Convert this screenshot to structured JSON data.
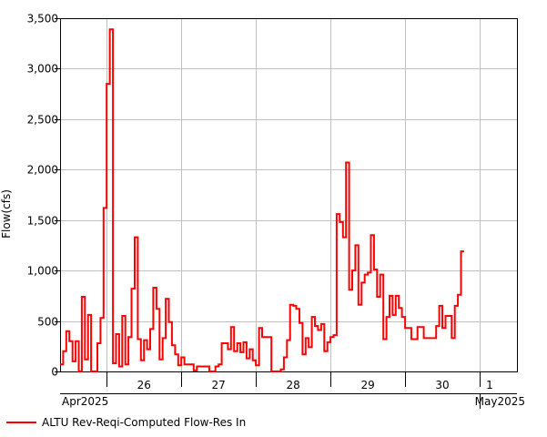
{
  "chart_data": {
    "type": "line",
    "ylabel": "Flow(cfs)",
    "xlabel": "",
    "ylim": [
      0,
      3500
    ],
    "y_ticks": [
      "0",
      "500",
      "1,000",
      "1,500",
      "2,000",
      "2,500",
      "3,000",
      "3,500"
    ],
    "y_tick_values": [
      0,
      500,
      1000,
      1500,
      2000,
      2500,
      3000,
      3500
    ],
    "x_range_days": [
      "2025-04-25 09:00",
      "2025-05-01 12:00"
    ],
    "day_ticks": [
      {
        "label": "26",
        "date": "2025-04-26"
      },
      {
        "label": "27",
        "date": "2025-04-27"
      },
      {
        "label": "28",
        "date": "2025-04-28"
      },
      {
        "label": "29",
        "date": "2025-04-29"
      },
      {
        "label": "30",
        "date": "2025-04-30"
      },
      {
        "label": "1",
        "date": "2025-05-01"
      }
    ],
    "month_labels": [
      "Apr2025",
      "May2025"
    ],
    "grid": true,
    "legend_position": "bottom-left",
    "series": [
      {
        "name": "ALTU Rev-Reqi-Computed Flow-Res In",
        "color": "#ff0000",
        "step": true,
        "points": [
          [
            "2025-04-25 09:00",
            70
          ],
          [
            "2025-04-25 10:00",
            200
          ],
          [
            "2025-04-25 11:00",
            400
          ],
          [
            "2025-04-25 12:00",
            300
          ],
          [
            "2025-04-25 13:00",
            100
          ],
          [
            "2025-04-25 14:00",
            300
          ],
          [
            "2025-04-25 15:00",
            0
          ],
          [
            "2025-04-25 16:00",
            740
          ],
          [
            "2025-04-25 17:00",
            120
          ],
          [
            "2025-04-25 18:00",
            560
          ],
          [
            "2025-04-25 19:00",
            0
          ],
          [
            "2025-04-25 21:00",
            280
          ],
          [
            "2025-04-25 22:00",
            530
          ],
          [
            "2025-04-25 23:00",
            1620
          ],
          [
            "2025-04-26 00:00",
            2850
          ],
          [
            "2025-04-26 01:00",
            3390
          ],
          [
            "2025-04-26 02:00",
            80
          ],
          [
            "2025-04-26 03:00",
            370
          ],
          [
            "2025-04-26 04:00",
            50
          ],
          [
            "2025-04-26 05:00",
            550
          ],
          [
            "2025-04-26 06:00",
            70
          ],
          [
            "2025-04-26 07:00",
            340
          ],
          [
            "2025-04-26 08:00",
            820
          ],
          [
            "2025-04-26 09:00",
            1330
          ],
          [
            "2025-04-26 10:00",
            320
          ],
          [
            "2025-04-26 11:00",
            110
          ],
          [
            "2025-04-26 12:00",
            310
          ],
          [
            "2025-04-26 13:00",
            220
          ],
          [
            "2025-04-26 14:00",
            420
          ],
          [
            "2025-04-26 15:00",
            830
          ],
          [
            "2025-04-26 16:00",
            620
          ],
          [
            "2025-04-26 17:00",
            120
          ],
          [
            "2025-04-26 18:00",
            330
          ],
          [
            "2025-04-26 19:00",
            720
          ],
          [
            "2025-04-26 20:00",
            490
          ],
          [
            "2025-04-26 21:00",
            260
          ],
          [
            "2025-04-26 22:00",
            170
          ],
          [
            "2025-04-26 23:00",
            60
          ],
          [
            "2025-04-27 00:00",
            140
          ],
          [
            "2025-04-27 01:00",
            70
          ],
          [
            "2025-04-27 04:00",
            10
          ],
          [
            "2025-04-27 05:00",
            50
          ],
          [
            "2025-04-27 09:00",
            0
          ],
          [
            "2025-04-27 11:00",
            50
          ],
          [
            "2025-04-27 12:00",
            70
          ],
          [
            "2025-04-27 13:00",
            280
          ],
          [
            "2025-04-27 15:00",
            220
          ],
          [
            "2025-04-27 16:00",
            440
          ],
          [
            "2025-04-27 17:00",
            200
          ],
          [
            "2025-04-27 18:00",
            280
          ],
          [
            "2025-04-27 19:00",
            190
          ],
          [
            "2025-04-27 20:00",
            290
          ],
          [
            "2025-04-27 21:00",
            130
          ],
          [
            "2025-04-27 22:00",
            220
          ],
          [
            "2025-04-27 23:00",
            110
          ],
          [
            "2025-04-28 00:00",
            60
          ],
          [
            "2025-04-28 01:00",
            430
          ],
          [
            "2025-04-28 02:00",
            340
          ],
          [
            "2025-04-28 05:00",
            0
          ],
          [
            "2025-04-28 08:00",
            20
          ],
          [
            "2025-04-28 09:00",
            140
          ],
          [
            "2025-04-28 10:00",
            310
          ],
          [
            "2025-04-28 11:00",
            660
          ],
          [
            "2025-04-28 12:00",
            650
          ],
          [
            "2025-04-28 13:00",
            620
          ],
          [
            "2025-04-28 14:00",
            480
          ],
          [
            "2025-04-28 15:00",
            170
          ],
          [
            "2025-04-28 16:00",
            330
          ],
          [
            "2025-04-28 17:00",
            240
          ],
          [
            "2025-04-28 18:00",
            540
          ],
          [
            "2025-04-28 19:00",
            450
          ],
          [
            "2025-04-28 20:00",
            410
          ],
          [
            "2025-04-28 21:00",
            470
          ],
          [
            "2025-04-28 22:00",
            200
          ],
          [
            "2025-04-28 23:00",
            290
          ],
          [
            "2025-04-29 00:00",
            340
          ],
          [
            "2025-04-29 01:00",
            360
          ],
          [
            "2025-04-29 02:00",
            1560
          ],
          [
            "2025-04-29 03:00",
            1480
          ],
          [
            "2025-04-29 04:00",
            1330
          ],
          [
            "2025-04-29 05:00",
            2070
          ],
          [
            "2025-04-29 06:00",
            810
          ],
          [
            "2025-04-29 07:00",
            1000
          ],
          [
            "2025-04-29 08:00",
            1250
          ],
          [
            "2025-04-29 09:00",
            660
          ],
          [
            "2025-04-29 10:00",
            880
          ],
          [
            "2025-04-29 11:00",
            960
          ],
          [
            "2025-04-29 12:00",
            980
          ],
          [
            "2025-04-29 13:00",
            1350
          ],
          [
            "2025-04-29 14:00",
            1010
          ],
          [
            "2025-04-29 15:00",
            740
          ],
          [
            "2025-04-29 16:00",
            960
          ],
          [
            "2025-04-29 17:00",
            320
          ],
          [
            "2025-04-29 18:00",
            540
          ],
          [
            "2025-04-29 19:00",
            750
          ],
          [
            "2025-04-29 20:00",
            560
          ],
          [
            "2025-04-29 21:00",
            750
          ],
          [
            "2025-04-29 22:00",
            630
          ],
          [
            "2025-04-29 23:00",
            540
          ],
          [
            "2025-04-30 00:00",
            430
          ],
          [
            "2025-04-30 02:00",
            320
          ],
          [
            "2025-04-30 04:00",
            440
          ],
          [
            "2025-04-30 06:00",
            330
          ],
          [
            "2025-04-30 10:00",
            450
          ],
          [
            "2025-04-30 11:00",
            650
          ],
          [
            "2025-04-30 12:00",
            430
          ],
          [
            "2025-04-30 13:00",
            550
          ],
          [
            "2025-04-30 15:00",
            330
          ],
          [
            "2025-04-30 16:00",
            650
          ],
          [
            "2025-04-30 17:00",
            760
          ],
          [
            "2025-04-30 18:00",
            1190
          ],
          [
            "2025-04-30 19:00",
            1190
          ]
        ]
      }
    ]
  }
}
